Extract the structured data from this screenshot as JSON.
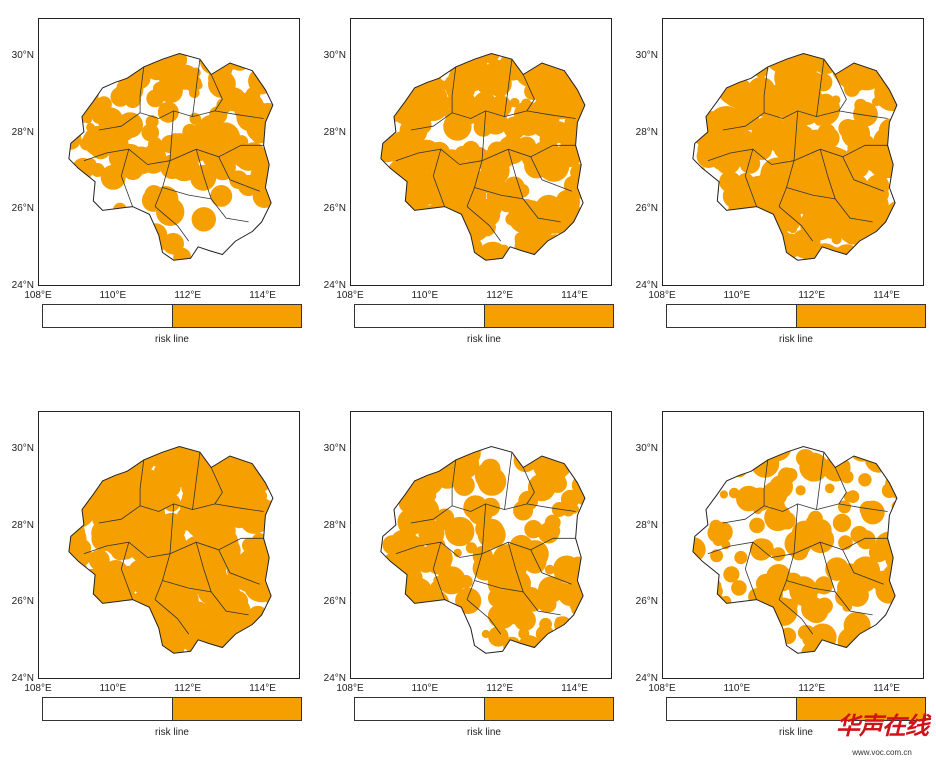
{
  "colors": {
    "risk": "#f5a000",
    "safe": "#ffffff",
    "border": "#222222"
  },
  "axes": {
    "lat_labels": [
      "30°N",
      "28°N",
      "26°N",
      "24°N"
    ],
    "lon_labels": [
      "108°E",
      "110°E",
      "112°E",
      "114°E"
    ]
  },
  "colorbar": {
    "label": "risk line"
  },
  "panels": [
    {
      "id": "p1",
      "risk_fraction": 0.55
    },
    {
      "id": "p2",
      "risk_fraction": 0.75
    },
    {
      "id": "p3",
      "risk_fraction": 0.9
    },
    {
      "id": "p4",
      "risk_fraction": 0.95
    },
    {
      "id": "p5",
      "risk_fraction": 0.5
    },
    {
      "id": "p6",
      "risk_fraction": 0.45
    }
  ],
  "watermark": {
    "title": "华声在线",
    "url": "www.voc.com.cn"
  }
}
